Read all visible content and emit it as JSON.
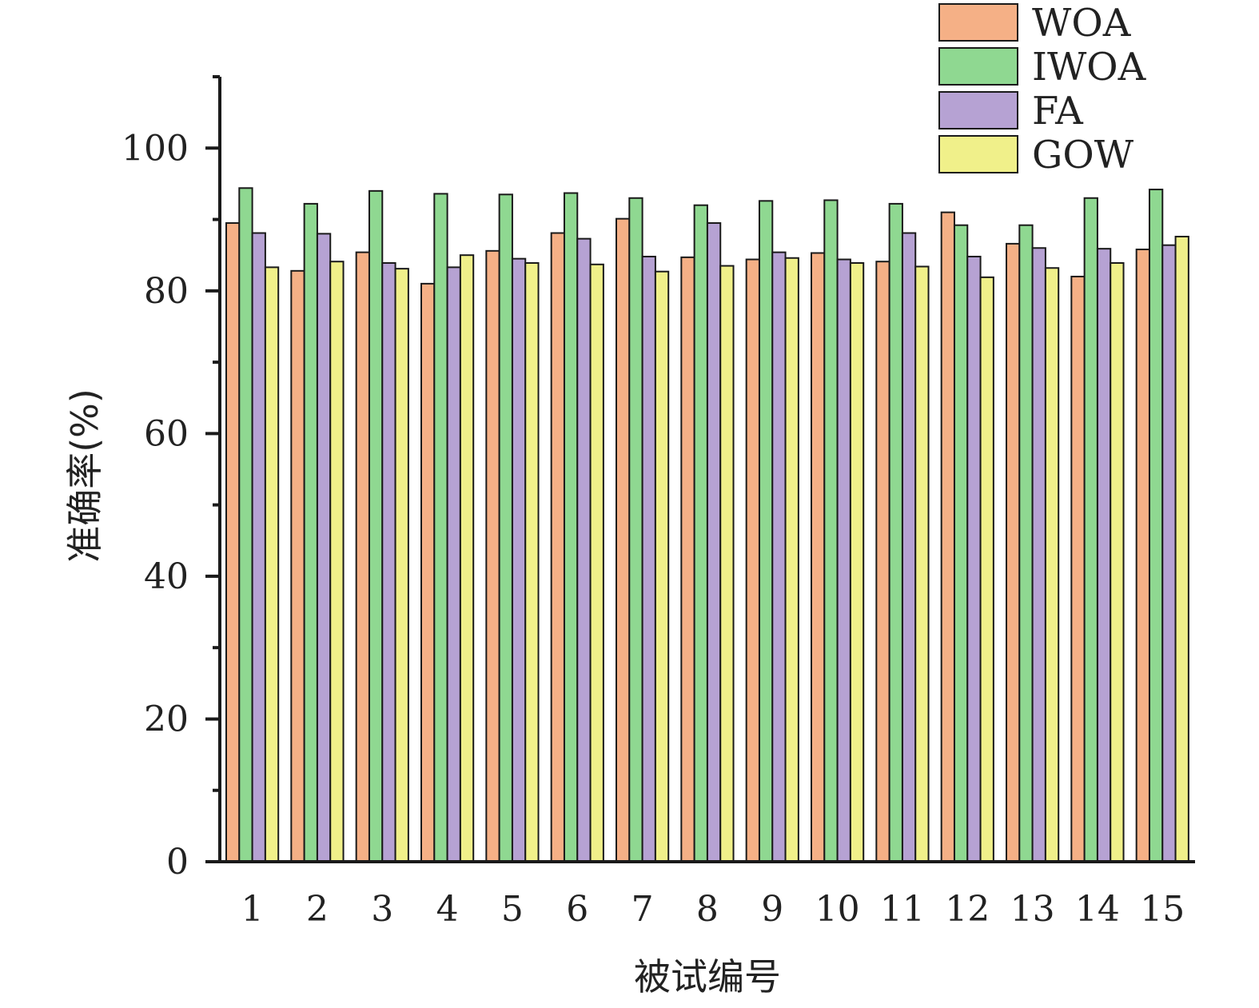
{
  "chart_data": {
    "type": "bar",
    "title": "",
    "xlabel": "被试编号",
    "ylabel": "准确率(%)",
    "ylim": [
      0,
      110
    ],
    "yticks": [
      0,
      20,
      40,
      60,
      80,
      100
    ],
    "grid": false,
    "legend_position": "top-right",
    "categories": [
      "1",
      "2",
      "3",
      "4",
      "5",
      "6",
      "7",
      "8",
      "9",
      "10",
      "11",
      "12",
      "13",
      "14",
      "15"
    ],
    "series": [
      {
        "name": "WOA",
        "color": "#F5B086",
        "values": [
          89.5,
          82.8,
          85.4,
          81.0,
          85.6,
          88.1,
          90.1,
          84.7,
          84.4,
          85.3,
          84.1,
          91.0,
          86.6,
          82.0,
          85.8
        ]
      },
      {
        "name": "IWOA",
        "color": "#8FD891",
        "values": [
          94.4,
          92.2,
          94.0,
          93.6,
          93.5,
          93.7,
          93.0,
          92.0,
          92.6,
          92.7,
          92.2,
          89.2,
          89.2,
          93.0,
          94.2
        ]
      },
      {
        "name": "FA",
        "color": "#B6A2D3",
        "values": [
          88.1,
          88.0,
          83.9,
          83.3,
          84.5,
          87.3,
          84.8,
          89.5,
          85.4,
          84.4,
          88.1,
          84.8,
          86.0,
          85.9,
          86.4
        ]
      },
      {
        "name": "GOW",
        "color": "#F0F08A",
        "values": [
          83.3,
          84.1,
          83.1,
          85.0,
          83.9,
          83.7,
          82.7,
          83.5,
          84.6,
          83.9,
          83.4,
          81.9,
          83.2,
          83.9,
          87.6
        ]
      }
    ]
  }
}
